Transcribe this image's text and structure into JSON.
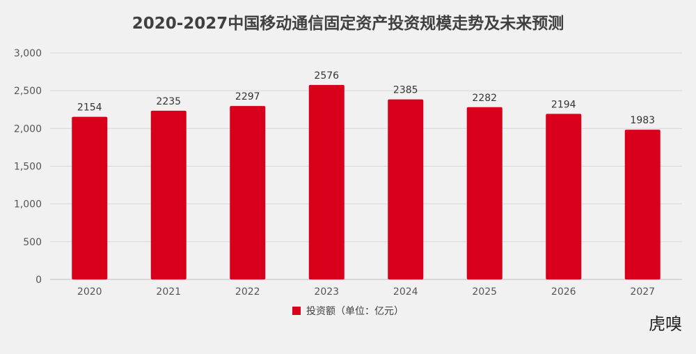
{
  "chart_data": {
    "type": "bar",
    "title": "2020-2027中国移动通信固定资产投资规模走势及未来预测",
    "categories": [
      "2020",
      "2021",
      "2022",
      "2023",
      "2024",
      "2025",
      "2026",
      "2027"
    ],
    "series": [
      {
        "name": "投资额（单位：亿元）",
        "values": [
          2154,
          2235,
          2297,
          2576,
          2385,
          2282,
          2194,
          1983
        ]
      }
    ],
    "data_labels": [
      "2154",
      "2235",
      "2297",
      "2576",
      "2385",
      "2282",
      "2194",
      "1983"
    ],
    "ylim": [
      0,
      3000
    ],
    "yticks": [
      0,
      500,
      1000,
      1500,
      2000,
      2500,
      3000
    ],
    "ytick_labels": [
      "0",
      "500",
      "1,000",
      "1,500",
      "2,000",
      "2,500",
      "3,000"
    ],
    "grid": true,
    "legend_position": "bottom",
    "bar_color": "#d9001b"
  },
  "brand": "虎嗅"
}
